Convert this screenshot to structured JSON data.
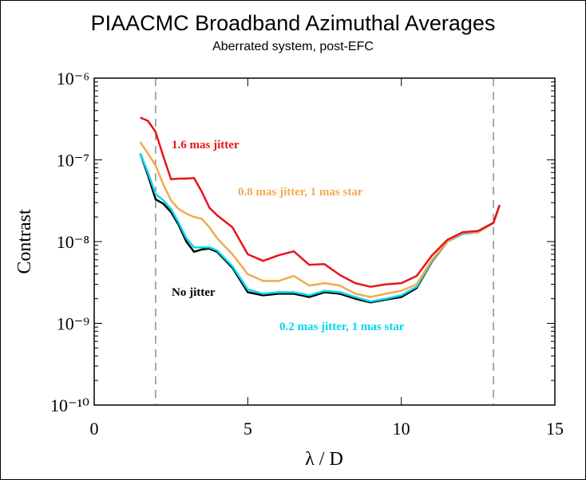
{
  "chart_data": {
    "type": "line",
    "title": "PIAACMC Broadband Azimuthal Averages",
    "subtitle": "Aberrated system, post-EFC",
    "x_label": "λ / D",
    "y_label": "Contrast",
    "log_y": true,
    "xlim": [
      0,
      15
    ],
    "xticks": [
      0,
      5,
      10,
      15
    ],
    "ylim": [
      1e-10,
      1e-06
    ],
    "yticks": [
      {
        "value": 1e-10,
        "label": "10⁻¹⁰"
      },
      {
        "value": 1e-09,
        "label": "10⁻⁹"
      },
      {
        "value": 1e-08,
        "label": "10⁻⁸"
      },
      {
        "value": 1e-07,
        "label": "10⁻⁷"
      },
      {
        "value": 1e-06,
        "label": "10⁻⁶"
      }
    ],
    "vlines": [
      2,
      13
    ],
    "x": [
      1.5,
      1.75,
      2,
      2.25,
      2.5,
      2.75,
      3,
      3.25,
      3.5,
      3.75,
      4,
      4.5,
      5,
      5.5,
      6,
      6.5,
      7,
      7.5,
      8,
      8.5,
      9,
      9.5,
      10,
      10.5,
      11,
      11.5,
      12,
      12.5,
      13,
      13.2
    ],
    "series": [
      {
        "name": "No jitter",
        "color": "#000000",
        "values": [
          1.2e-07,
          6.5e-08,
          3.3e-08,
          2.9e-08,
          2.3e-08,
          1.6e-08,
          1e-08,
          7.5e-09,
          8e-09,
          8.2e-09,
          7.5e-09,
          4.8e-09,
          2.4e-09,
          2.2e-09,
          2.3e-09,
          2.3e-09,
          2.1e-09,
          2.4e-09,
          2.3e-09,
          2e-09,
          1.8e-09,
          1.95e-09,
          2.1e-09,
          2.7e-09,
          5.7e-09,
          1e-08,
          1.25e-08,
          1.3e-08,
          1.7e-08,
          2.8e-08
        ]
      },
      {
        "name": "0.2 mas jitter, 1 mas star",
        "color": "#00d8f0",
        "values": [
          1.2e-07,
          7e-08,
          3.8e-08,
          3.2e-08,
          2.5e-08,
          1.7e-08,
          1.1e-08,
          8.5e-09,
          8.5e-09,
          8.5e-09,
          7.8e-09,
          5e-09,
          2.6e-09,
          2.3e-09,
          2.4e-09,
          2.4e-09,
          2.2e-09,
          2.5e-09,
          2.4e-09,
          2.1e-09,
          1.85e-09,
          2e-09,
          2.2e-09,
          2.8e-09,
          5.8e-09,
          1e-08,
          1.25e-08,
          1.3e-08,
          1.7e-08,
          2.8e-08
        ]
      },
      {
        "name": "0.8 mas jitter, 1 mas star",
        "color": "#f5a850",
        "values": [
          1.65e-07,
          1.2e-07,
          8.5e-08,
          5e-08,
          3.2e-08,
          2.5e-08,
          2.2e-08,
          2e-08,
          1.9e-08,
          1.5e-08,
          1.1e-08,
          7e-09,
          4e-09,
          3.3e-09,
          3.3e-09,
          3.8e-09,
          2.9e-09,
          3.1e-09,
          2.9e-09,
          2.3e-09,
          2.1e-09,
          2.3e-09,
          2.5e-09,
          3e-09,
          6e-09,
          1e-08,
          1.28e-08,
          1.3e-08,
          1.7e-08,
          2.8e-08
        ]
      },
      {
        "name": "1.6 mas jitter",
        "color": "#e8141c",
        "values": [
          3.3e-07,
          3e-07,
          2.2e-07,
          1.1e-07,
          5.8e-08,
          5.9e-08,
          5.9e-08,
          6e-08,
          4.1e-08,
          2.6e-08,
          2.1e-08,
          1.5e-08,
          7e-09,
          5.8e-09,
          6.8e-09,
          7.6e-09,
          5.2e-09,
          5.3e-09,
          3.9e-09,
          3.1e-09,
          2.8e-09,
          3e-09,
          3.1e-09,
          3.8e-09,
          6.8e-09,
          1.05e-08,
          1.3e-08,
          1.35e-08,
          1.7e-08,
          2.8e-08
        ]
      }
    ]
  }
}
